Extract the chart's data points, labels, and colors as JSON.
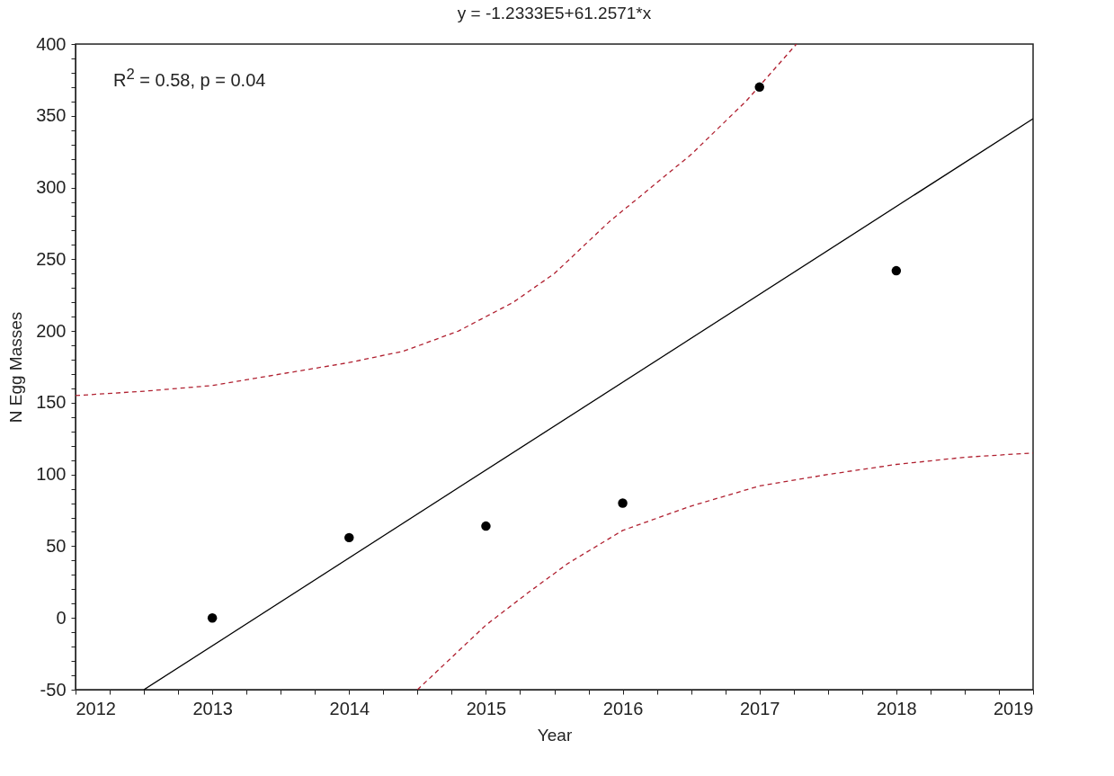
{
  "chart_data": {
    "type": "scatter",
    "title": "y = -1.2333E5+61.2571*x",
    "xlabel": "Year",
    "ylabel": "N Egg Masses",
    "annotations": [
      "R$^{2}$ = 0.58, p = 0.04"
    ],
    "xlim": [
      2012,
      2019
    ],
    "xticks": [
      2012,
      {
        "value": 2012.25,
        "label": null
      },
      {
        "value": 2012.5,
        "label": null
      },
      {
        "value": 2012.75,
        "label": null
      },
      2013,
      {
        "value": 2013.25,
        "label": null
      },
      {
        "value": 2013.5,
        "label": null
      },
      {
        "value": 2013.75,
        "label": null
      },
      2014,
      {
        "value": 2014.25,
        "label": null
      },
      {
        "value": 2014.5,
        "label": null
      },
      {
        "value": 2014.75,
        "label": null
      },
      2015,
      {
        "value": 2015.25,
        "label": null
      },
      {
        "value": 2015.5,
        "label": null
      },
      {
        "value": 2015.75,
        "label": null
      },
      2016,
      {
        "value": 2016.25,
        "label": null
      },
      {
        "value": 2016.5,
        "label": null
      },
      {
        "value": 2016.75,
        "label": null
      },
      2017,
      {
        "value": 2017.25,
        "label": null
      },
      {
        "value": 2017.5,
        "label": null
      },
      {
        "value": 2017.75,
        "label": null
      },
      2018,
      {
        "value": 2018.25,
        "label": null
      },
      {
        "value": 2018.5,
        "label": null
      },
      {
        "value": 2018.75,
        "label": null
      },
      2019
    ],
    "ylim": [
      -50,
      400
    ],
    "yticks": [
      -50,
      {
        "value": -40,
        "label": null
      },
      {
        "value": -30,
        "label": null
      },
      {
        "value": -20,
        "label": null
      },
      {
        "value": -10,
        "label": null
      },
      0,
      {
        "value": 10,
        "label": null
      },
      {
        "value": 20,
        "label": null
      },
      {
        "value": 30,
        "label": null
      },
      {
        "value": 40,
        "label": null
      },
      50,
      {
        "value": 60,
        "label": null
      },
      {
        "value": 70,
        "label": null
      },
      {
        "value": 80,
        "label": null
      },
      {
        "value": 90,
        "label": null
      },
      100,
      {
        "value": 110,
        "label": null
      },
      {
        "value": 120,
        "label": null
      },
      {
        "value": 130,
        "label": null
      },
      {
        "value": 140,
        "label": null
      },
      150,
      {
        "value": 160,
        "label": null
      },
      {
        "value": 170,
        "label": null
      },
      {
        "value": 180,
        "label": null
      },
      {
        "value": 190,
        "label": null
      },
      200,
      {
        "value": 210,
        "label": null
      },
      {
        "value": 220,
        "label": null
      },
      {
        "value": 230,
        "label": null
      },
      {
        "value": 240,
        "label": null
      },
      250,
      {
        "value": 260,
        "label": null
      },
      {
        "value": 270,
        "label": null
      },
      {
        "value": 280,
        "label": null
      },
      {
        "value": 290,
        "label": null
      },
      300,
      {
        "value": 310,
        "label": null
      },
      {
        "value": 320,
        "label": null
      },
      {
        "value": 330,
        "label": null
      },
      {
        "value": 340,
        "label": null
      },
      350,
      {
        "value": 360,
        "label": null
      },
      {
        "value": 370,
        "label": null
      },
      {
        "value": 380,
        "label": null
      },
      {
        "value": 390,
        "label": null
      },
      400
    ],
    "series": [
      {
        "type": "line",
        "color": "#b02030",
        "line_style": "dashed",
        "x": [
          2012,
          2012.5,
          2013,
          2013.5,
          2014,
          2014.4,
          2014.8,
          2015.2,
          2015.5,
          2015.9,
          2016.5,
          2016.9,
          2017.27
        ],
        "values": [
          155,
          158,
          162,
          170,
          178,
          186,
          200,
          220,
          240,
          276,
          323,
          360,
          400
        ]
      },
      {
        "type": "line",
        "color": "#b02030",
        "line_style": "dashed",
        "x": [
          2014.5,
          2015,
          2015.3,
          2015.6,
          2016,
          2016.5,
          2017,
          2017.5,
          2018,
          2018.5,
          2019
        ],
        "values": [
          -50,
          -5,
          17,
          38,
          61,
          78,
          92,
          100,
          107,
          112,
          115
        ]
      },
      {
        "type": "line",
        "color": "#000000",
        "line_style": "solid",
        "x": [
          2012.5,
          2019
        ],
        "values": [
          -50,
          348
        ]
      },
      {
        "type": "scatter",
        "color": "#000000",
        "marker": "circle",
        "x": [
          2013,
          2014,
          2015,
          2016,
          2017,
          2018
        ],
        "values": [
          0,
          56,
          64,
          80,
          370,
          242
        ]
      }
    ]
  }
}
